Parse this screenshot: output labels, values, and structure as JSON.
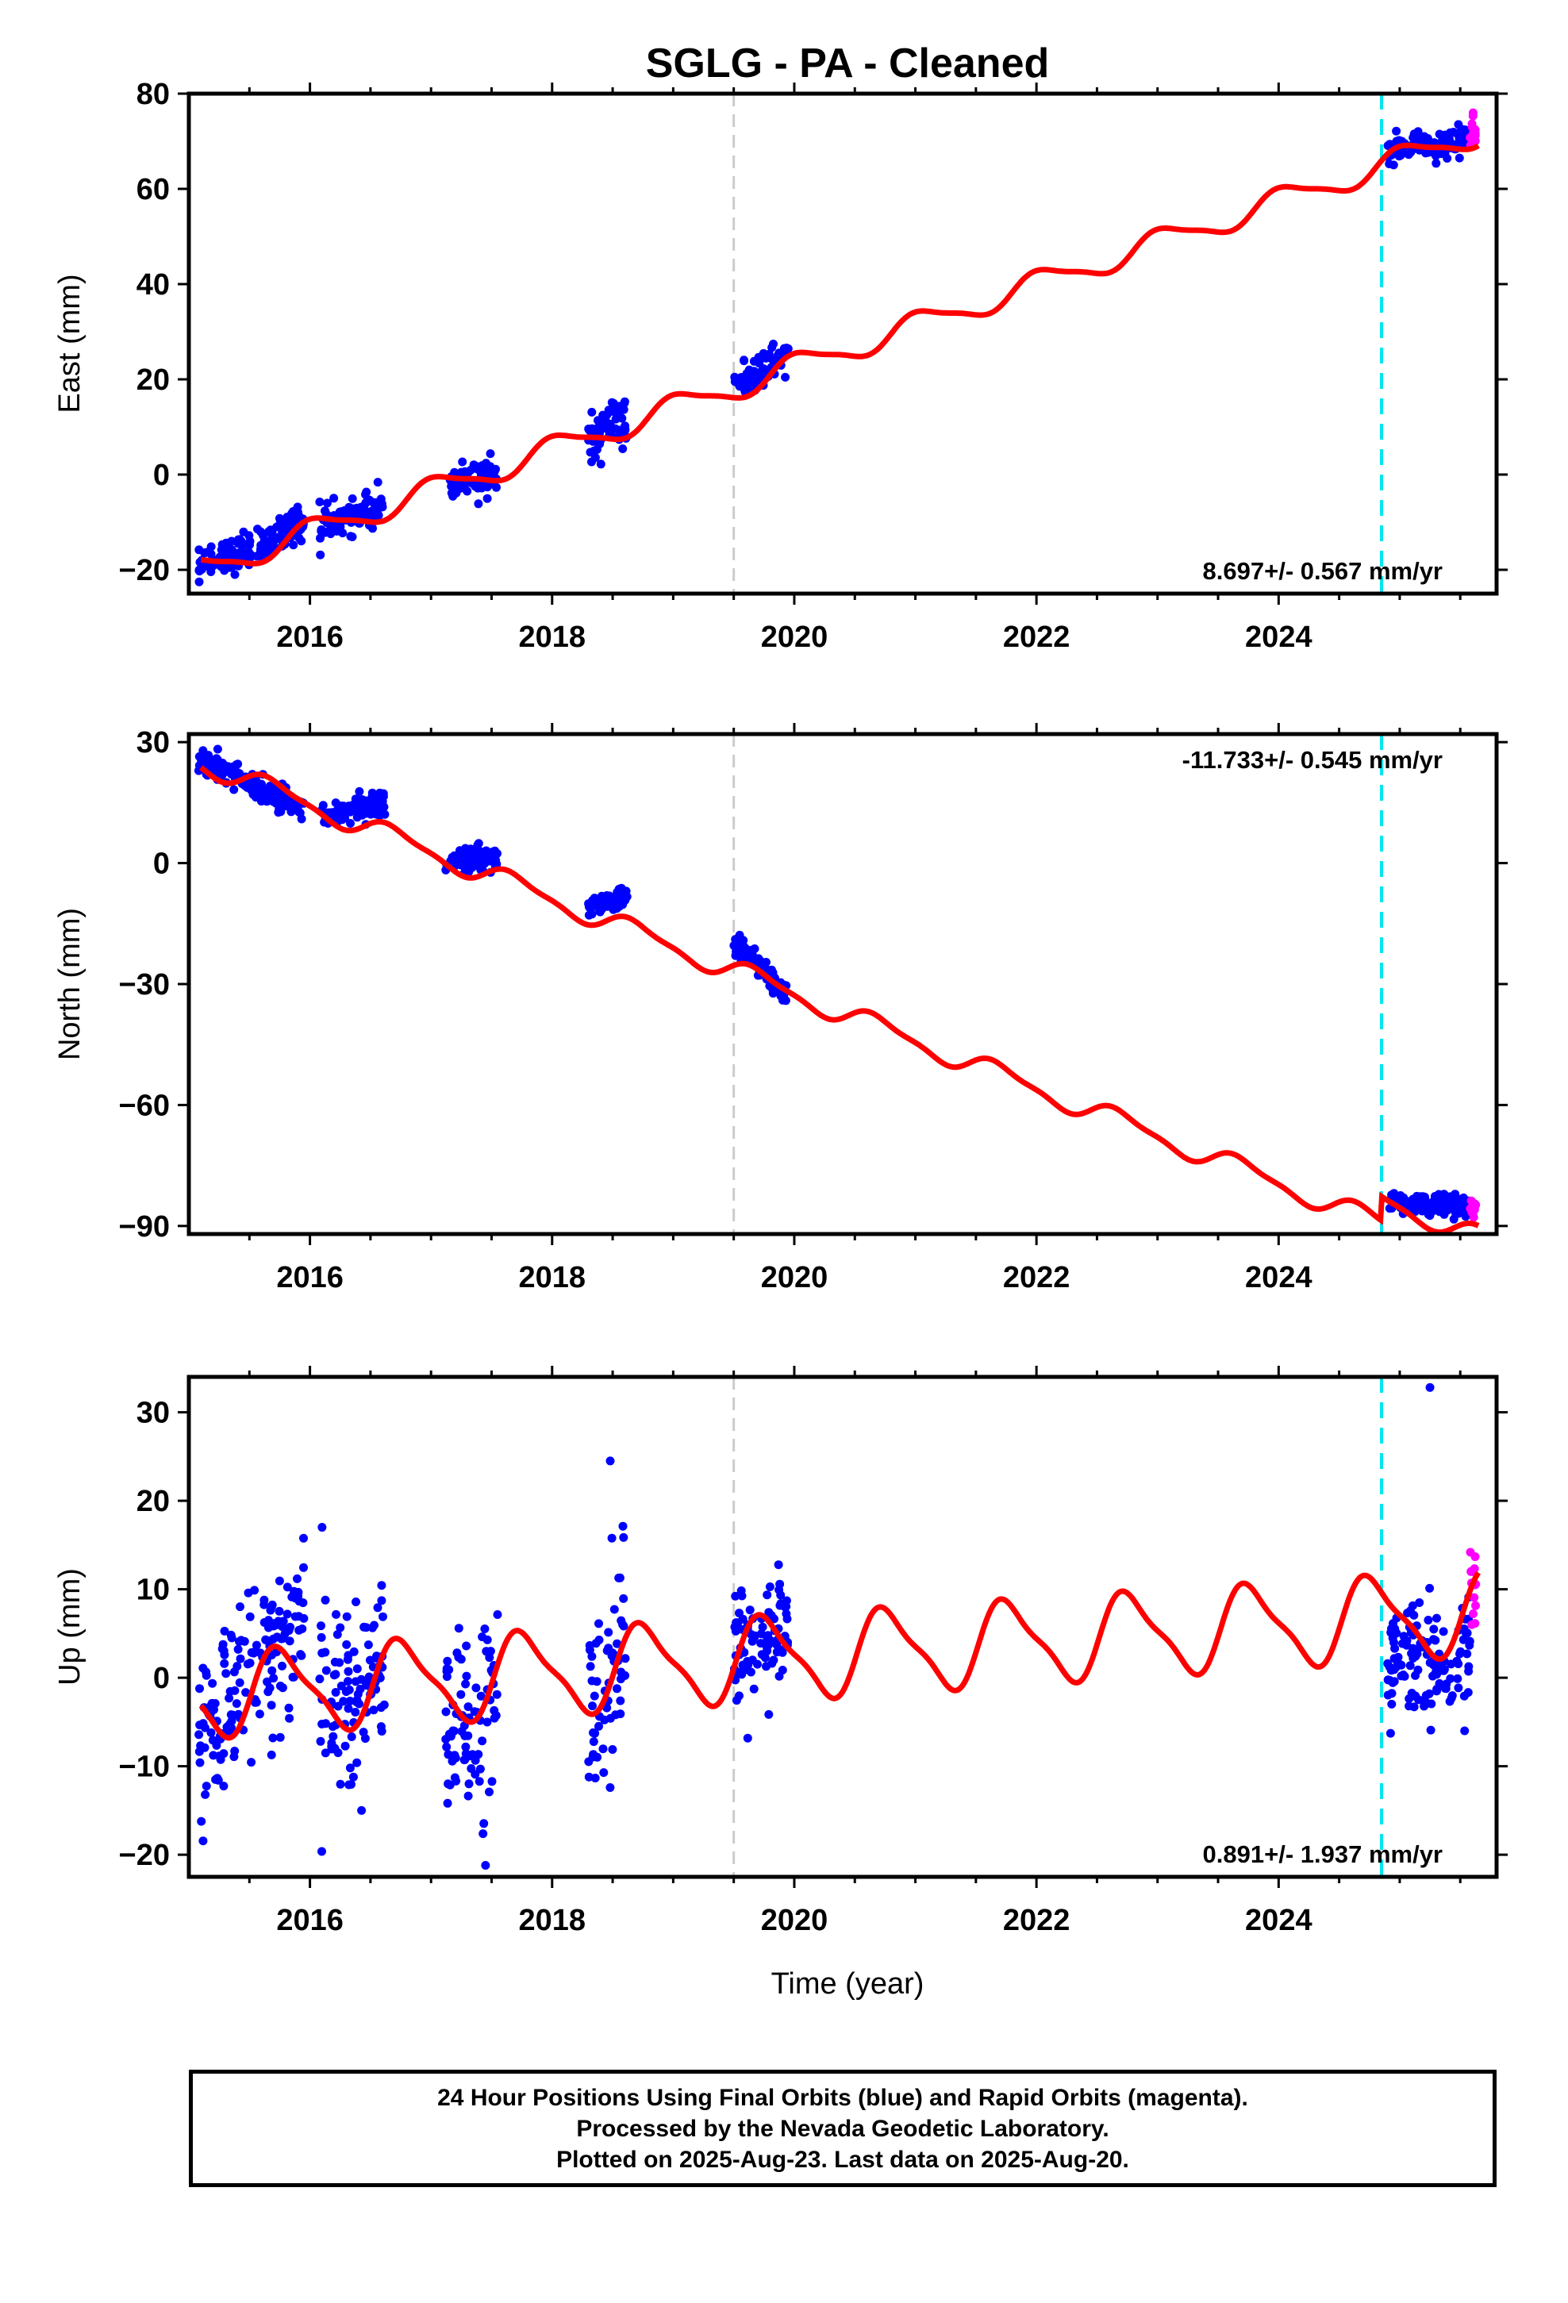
{
  "title": "SGLG  - PA - Cleaned",
  "xlabel": "Time (year)",
  "footer": {
    "line1": "24 Hour Positions Using Final Orbits (blue) and Rapid Orbits (magenta).",
    "line2": "Processed by the Nevada Geodetic Laboratory.",
    "line3": "Plotted on 2025-Aug-23. Last data on 2025-Aug-20."
  },
  "colors": {
    "final": "#0000ff",
    "rapid": "#ff00ff",
    "model": "#ff0000",
    "equipment": "#cccccc",
    "earthquake": "#00e5ee"
  },
  "chart_data": [
    {
      "type": "scatter",
      "component": "east",
      "ylabel": "East (mm)",
      "rate_label": "8.697+/- 0.567 mm/yr",
      "xlim": [
        2015.0,
        2025.8
      ],
      "ylim": [
        -25,
        80
      ],
      "xticks": [
        2016,
        2018,
        2020,
        2022,
        2024
      ],
      "xtick_labels": [
        "2016",
        "2018",
        "2020",
        "2022",
        "2024"
      ],
      "yticks": [
        -20,
        0,
        20,
        40,
        60,
        80
      ],
      "ytick_labels": [
        "−20",
        "0",
        "20",
        "40",
        "60",
        "80"
      ],
      "reference_lines": [
        {
          "x": 2019.5,
          "style": "dashed",
          "color": "#cccccc"
        },
        {
          "x": 2024.85,
          "style": "dashed",
          "color": "#00e5ee"
        }
      ],
      "trend": {
        "rate": 8.697,
        "intercept": -20.0,
        "t0": 2015.1,
        "annual_amp": 2.6,
        "annual_phase": 0.2,
        "semi_amp": 0.6,
        "offset_after": {
          "x": 2024.85,
          "value": 0
        }
      },
      "final_segments": [
        {
          "x_range": [
            2015.08,
            2015.95
          ],
          "y_start": -20,
          "y_end": -10,
          "scatter": 1.8
        },
        {
          "x_range": [
            2016.08,
            2016.6
          ],
          "y_start": -11,
          "y_end": -6,
          "scatter": 1.8
        },
        {
          "x_range": [
            2017.15,
            2017.55
          ],
          "y_start": -2,
          "y_end": 0,
          "scatter": 1.8
        },
        {
          "x_range": [
            2018.3,
            2018.62
          ],
          "y_start": 7,
          "y_end": 12,
          "scatter": 2.6
        },
        {
          "x_range": [
            2019.5,
            2019.95
          ],
          "y_start": 19,
          "y_end": 25,
          "scatter": 1.8
        },
        {
          "x_range": [
            2024.9,
            2025.58
          ],
          "y_start": 67,
          "y_end": 71,
          "scatter": 1.4
        }
      ],
      "rapid_segments": [
        {
          "x_range": [
            2025.58,
            2025.63
          ],
          "y_start": 71,
          "y_end": 73,
          "scatter": 3
        }
      ]
    },
    {
      "type": "scatter",
      "component": "north",
      "ylabel": "North (mm)",
      "rate_label": "-11.733+/- 0.545 mm/yr",
      "xlim": [
        2015.0,
        2025.8
      ],
      "ylim": [
        -92,
        32
      ],
      "xticks": [
        2016,
        2018,
        2020,
        2022,
        2024
      ],
      "xtick_labels": [
        "2016",
        "2018",
        "2020",
        "2022",
        "2024"
      ],
      "yticks": [
        -90,
        -60,
        -30,
        0,
        30
      ],
      "ytick_labels": [
        "−90",
        "−60",
        "−30",
        "0",
        "30"
      ],
      "reference_lines": [
        {
          "x": 2019.5,
          "style": "dashed",
          "color": "#cccccc"
        },
        {
          "x": 2024.85,
          "style": "dashed",
          "color": "#00e5ee"
        }
      ],
      "trend": {
        "rate": -11.733,
        "intercept": 25.0,
        "t0": 2015.1,
        "annual_amp": 2.5,
        "annual_phase": 0.55,
        "semi_amp": 0.8,
        "offset_after": {
          "x": 2024.85,
          "value": 6
        }
      },
      "final_segments": [
        {
          "x_range": [
            2015.08,
            2015.95
          ],
          "y_start": 26,
          "y_end": 13,
          "scatter": 1.6
        },
        {
          "x_range": [
            2016.08,
            2016.62
          ],
          "y_start": 12,
          "y_end": 15,
          "scatter": 1.6
        },
        {
          "x_range": [
            2017.12,
            2017.55
          ],
          "y_start": 0,
          "y_end": 2,
          "scatter": 1.6
        },
        {
          "x_range": [
            2018.3,
            2018.62
          ],
          "y_start": -11,
          "y_end": -9,
          "scatter": 1.5
        },
        {
          "x_range": [
            2019.5,
            2019.95
          ],
          "y_start": -20,
          "y_end": -33,
          "scatter": 1.5
        },
        {
          "x_range": [
            2024.9,
            2025.58
          ],
          "y_start": -85,
          "y_end": -86,
          "scatter": 1.3
        }
      ],
      "rapid_segments": [
        {
          "x_range": [
            2025.58,
            2025.63
          ],
          "y_start": -86,
          "y_end": -85,
          "scatter": 2
        }
      ]
    },
    {
      "type": "scatter",
      "component": "up",
      "ylabel": "Up (mm)",
      "rate_label": "0.891+/- 1.937 mm/yr",
      "xlim": [
        2015.0,
        2025.8
      ],
      "ylim": [
        -22.5,
        34
      ],
      "xticks": [
        2016,
        2018,
        2020,
        2022,
        2024
      ],
      "xtick_labels": [
        "2016",
        "2018",
        "2020",
        "2022",
        "2024"
      ],
      "yticks": [
        -20,
        -10,
        0,
        10,
        20,
        30
      ],
      "ytick_labels": [
        "−20",
        "−10",
        "0",
        "10",
        "20",
        "30"
      ],
      "reference_lines": [
        {
          "x": 2019.5,
          "style": "dashed",
          "color": "#cccccc"
        },
        {
          "x": 2024.85,
          "style": "dashed",
          "color": "#00e5ee"
        }
      ],
      "trend": {
        "rate": 0.891,
        "intercept": -2.0,
        "t0": 2015.1,
        "annual_amp": 4.5,
        "annual_phase": 0.48,
        "semi_amp": 1.2,
        "offset_after": {
          "x": 2024.85,
          "value": 0
        }
      },
      "final_segments": [
        {
          "x_range": [
            2015.08,
            2015.95
          ],
          "y_start": -6,
          "y_end": 6,
          "scatter": 4.5
        },
        {
          "x_range": [
            2016.08,
            2016.62
          ],
          "y_start": -3,
          "y_end": 2,
          "scatter": 5
        },
        {
          "x_range": [
            2017.12,
            2017.55
          ],
          "y_start": -5,
          "y_end": -4,
          "scatter": 5.5
        },
        {
          "x_range": [
            2018.3,
            2018.62
          ],
          "y_start": -2,
          "y_end": 3,
          "scatter": 5.5
        },
        {
          "x_range": [
            2019.5,
            2019.95
          ],
          "y_start": 2,
          "y_end": 4,
          "scatter": 4
        },
        {
          "x_range": [
            2024.9,
            2025.58
          ],
          "y_start": 2,
          "y_end": 2,
          "scatter": 3.5
        }
      ],
      "rapid_segments": [
        {
          "x_range": [
            2025.58,
            2025.63
          ],
          "y_start": 6,
          "y_end": 15,
          "scatter": 5
        }
      ],
      "outliers": [
        {
          "x": 2018.48,
          "y": 24.5
        },
        {
          "x": 2025.25,
          "y": 32.8
        },
        {
          "x": 2017.45,
          "y": -21.2
        },
        {
          "x": 2016.1,
          "y": 17
        }
      ]
    }
  ]
}
